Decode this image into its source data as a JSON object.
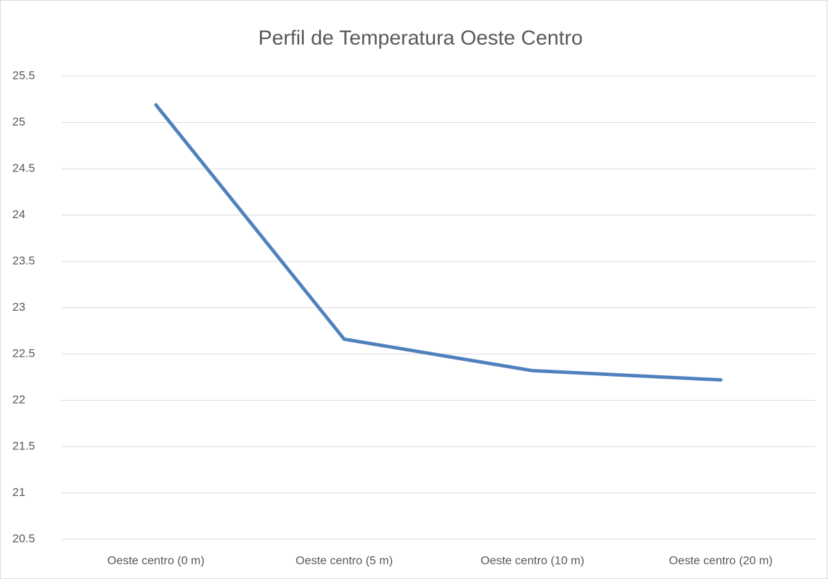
{
  "chart_data": {
    "type": "line",
    "title": "Perfil de Temperatura Oeste Centro",
    "categories": [
      "Oeste centro (0 m)",
      "Oeste centro (5 m)",
      "Oeste centro (10 m)",
      "Oeste centro (20 m)"
    ],
    "values": [
      25.19,
      22.66,
      22.32,
      22.22
    ],
    "color": "#4f81bd",
    "ylim": [
      20.5,
      25.5
    ],
    "yticks": [
      20.5,
      21,
      21.5,
      22,
      22.5,
      23,
      23.5,
      24,
      24.5,
      25,
      25.5
    ],
    "grid": true
  }
}
